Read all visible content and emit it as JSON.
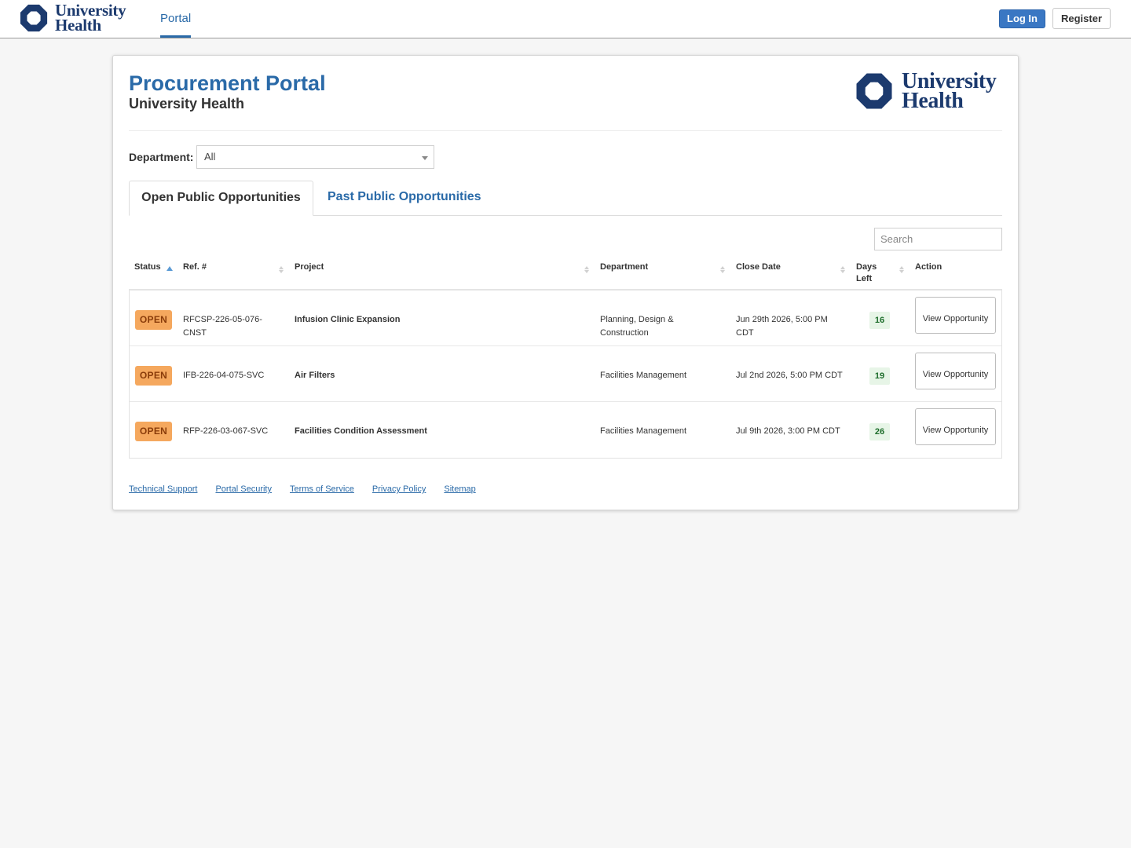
{
  "topnav": {
    "brand_line1": "University",
    "brand_line2": "Health",
    "portal_link": "Portal",
    "login_label": "Log In",
    "register_label": "Register"
  },
  "header": {
    "title": "Procurement Portal",
    "subtitle": "University Health",
    "logo_line1": "University",
    "logo_line2": "Health"
  },
  "filter": {
    "department_label": "Department:",
    "department_value": "All"
  },
  "tabs": [
    {
      "label": "Open Public Opportunities",
      "active": true
    },
    {
      "label": "Past Public Opportunities",
      "active": false
    }
  ],
  "search": {
    "placeholder": "Search"
  },
  "table": {
    "columns": [
      "Status",
      "Ref. #",
      "Project",
      "Department",
      "Close Date",
      "Days Left",
      "Action"
    ],
    "rows": [
      {
        "status": "OPEN",
        "ref": "RFCSP-226-05-076-CNST",
        "project": "Infusion Clinic Expansion",
        "department": "Planning, Design & Construction",
        "close_date": "Jun 29th 2026, 5:00 PM CDT",
        "days_left": "16",
        "action": "View Opportunity"
      },
      {
        "status": "OPEN",
        "ref": "IFB-226-04-075-SVC",
        "project": "Air Filters",
        "department": "Facilities Management",
        "close_date": "Jul 2nd 2026, 5:00 PM CDT",
        "days_left": "19",
        "action": "View Opportunity"
      },
      {
        "status": "OPEN",
        "ref": "RFP-226-03-067-SVC",
        "project": "Facilities Condition Assessment",
        "department": "Facilities Management",
        "close_date": "Jul 9th 2026, 3:00 PM CDT",
        "days_left": "26",
        "action": "View Opportunity"
      }
    ]
  },
  "footer": {
    "links": [
      "Technical Support",
      "Portal Security",
      "Terms of Service",
      "Privacy Policy",
      "Sitemap"
    ]
  },
  "colors": {
    "brand_navy": "#1c3a6e",
    "link_blue": "#2a6aa8",
    "open_badge": "#f5a85e",
    "days_badge": "#e7f5e7"
  },
  "icons": {
    "logo": "university-health-star-icon",
    "select_caret": "caret-down-icon",
    "sort": "sort-arrows-icon"
  }
}
